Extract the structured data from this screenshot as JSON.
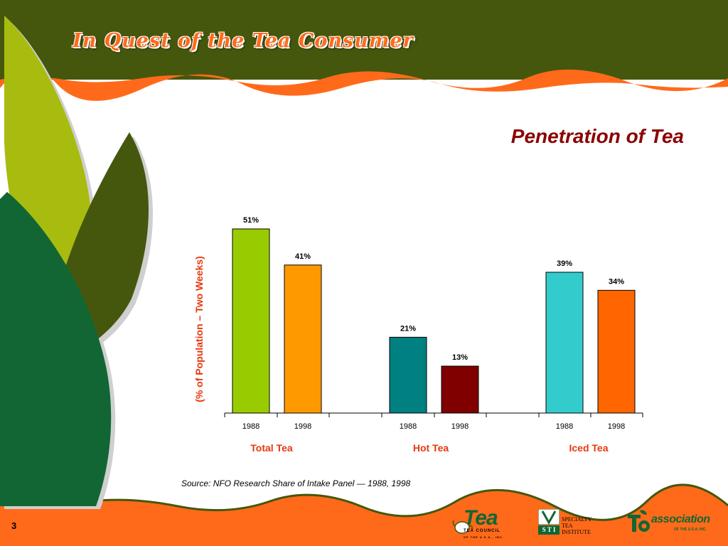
{
  "header": {
    "title": "In Quest of the Tea Consumer"
  },
  "slide": {
    "title": "Penetration of Tea",
    "page_number": "3"
  },
  "source_note": "Source: NFO Research Share of Intake Panel — 1988, 1998",
  "logos": {
    "tea_council": {
      "word": "Tea",
      "line1": "TEA COUNCIL",
      "line2": "OF THE U.S.A., INC."
    },
    "sti": {
      "mark": "S T I",
      "line1": "SPECIALTY",
      "line2": "TEA",
      "line3": "INSTITUTE"
    },
    "tea_association": {
      "word": "association",
      "line2": "OF THE U.S.A. INC."
    }
  },
  "colors": {
    "header_green": "#45570d",
    "orange_band": "#ff6a1a",
    "title_red": "#8b0000",
    "label_orange": "#e8380d"
  },
  "chart_data": {
    "type": "bar",
    "ylabel": "(% of Population – Two Weeks)",
    "ylim": [
      0,
      60
    ],
    "groups": [
      "Total Tea",
      "Hot Tea",
      "Iced Tea"
    ],
    "categories": [
      "1988",
      "1998",
      "1988",
      "1998",
      "1988",
      "1998"
    ],
    "values": [
      51,
      41,
      21,
      13,
      39,
      34
    ],
    "data_labels": [
      "51%",
      "41%",
      "21%",
      "13%",
      "39%",
      "34%"
    ],
    "bar_colors": [
      "#99cc00",
      "#ff9900",
      "#008080",
      "#800000",
      "#33cccc",
      "#ff6600"
    ],
    "grid": false,
    "legend": "none"
  }
}
